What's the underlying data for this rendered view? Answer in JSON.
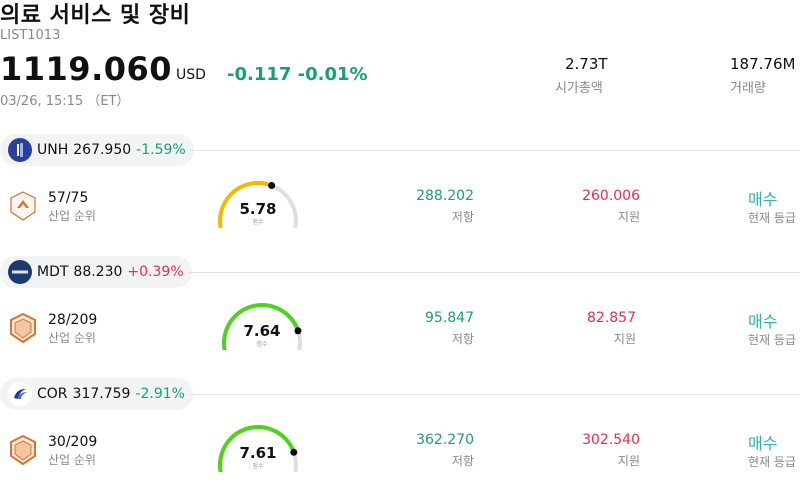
{
  "header": {
    "title": "의료 서비스 및 장비",
    "code": "LIST1013",
    "price": "1119.060",
    "currency": "USD",
    "change": "-0.117 -0.01%",
    "time": "03/26, 15:15 （ET）"
  },
  "stats": [
    {
      "value": "2.73T",
      "label": "시가총액"
    },
    {
      "value": "187.76M",
      "label": "거래량"
    }
  ],
  "stocks": [
    {
      "symbol": "UNH",
      "price": "267.950",
      "change": "-1.59%",
      "direction": "down",
      "logo_icon": "unh-logo-icon",
      "rank": "57/75",
      "rank_label": "산업 순위",
      "score": "5.78",
      "score_label": "점수",
      "score_fraction": 0.578,
      "gauge_color": "#f5b800",
      "resistance": "288.202",
      "resistance_label": "저항",
      "support": "260.006",
      "support_label": "지원",
      "rating": "매수",
      "rating_label": "현재 등급"
    },
    {
      "symbol": "MDT",
      "price": "88.230",
      "change": "+0.39%",
      "direction": "up",
      "logo_icon": "medtronic-logo-icon",
      "rank": "28/209",
      "rank_label": "산업 순위",
      "score": "7.64",
      "score_label": "점수",
      "score_fraction": 0.764,
      "gauge_color": "#4cd31c",
      "resistance": "95.847",
      "resistance_label": "저항",
      "support": "82.857",
      "support_label": "지원",
      "rating": "매수",
      "rating_label": "현재 등급"
    },
    {
      "symbol": "COR",
      "price": "317.759",
      "change": "-2.91%",
      "direction": "down",
      "logo_icon": "cencora-logo-icon",
      "rank": "30/209",
      "rank_label": "산업 순위",
      "score": "7.61",
      "score_label": "점수",
      "score_fraction": 0.761,
      "gauge_color": "#4cd31c",
      "resistance": "362.270",
      "resistance_label": "저항",
      "support": "302.540",
      "support_label": "지원",
      "rating": "매수",
      "rating_label": "현재 등급"
    }
  ]
}
